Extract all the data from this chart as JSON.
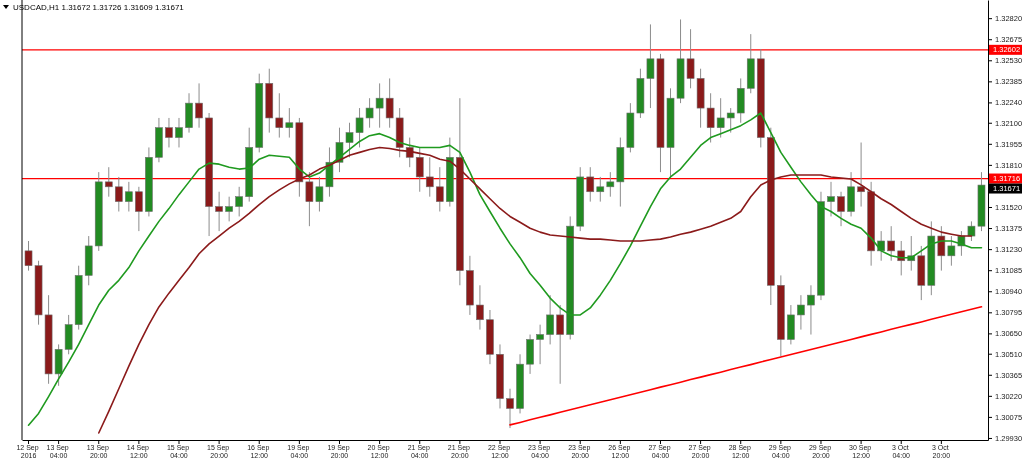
{
  "chart_data": {
    "type": "candlestick",
    "title": "USDCAD,H1  1.31672 1.31726 1.31609 1.31671",
    "categories": [
      "12 Sep 2016",
      null,
      null,
      "13 Sep 04:00",
      null,
      null,
      null,
      "13 Sep 20:00",
      null,
      null,
      null,
      "14 Sep 12:00",
      null,
      null,
      null,
      "15 Sep 04:00",
      null,
      null,
      null,
      "15 Sep 20:00",
      null,
      null,
      null,
      "16 Sep 12:00",
      null,
      null,
      null,
      "19 Sep 04:00",
      null,
      null,
      null,
      "19 Sep 20:00",
      null,
      null,
      null,
      "20 Sep 12:00",
      null,
      null,
      null,
      "21 Sep 04:00",
      null,
      null,
      null,
      "21 Sep 20:00",
      null,
      null,
      null,
      "22 Sep 12:00",
      null,
      null,
      null,
      "23 Sep 04:00",
      null,
      null,
      null,
      "23 Sep 20:00",
      null,
      null,
      null,
      "26 Sep 12:00",
      null,
      null,
      null,
      "27 Sep 04:00",
      null,
      null,
      null,
      "27 Sep 20:00",
      null,
      null,
      null,
      "28 Sep 12:00",
      null,
      null,
      null,
      "29 Sep 04:00",
      null,
      null,
      null,
      "29 Sep 20:00",
      null,
      null,
      null,
      "30 Sep 12:00",
      null,
      null,
      null,
      "3 Oct 04:00",
      null,
      null,
      null,
      "3 Oct 20:00",
      null,
      null,
      null,
      null
    ],
    "ohlc": [
      [
        1.31218,
        1.31286,
        1.31082,
        1.31116
      ],
      [
        1.31116,
        1.3115,
        1.3071,
        1.30777
      ],
      [
        1.30777,
        1.30913,
        1.30303,
        1.30371
      ],
      [
        1.30371,
        1.30574,
        1.30289,
        1.3054
      ],
      [
        1.3054,
        1.30777,
        1.30506,
        1.3071
      ],
      [
        1.3071,
        1.31116,
        1.30676,
        1.31049
      ],
      [
        1.31049,
        1.3132,
        1.30981,
        1.31252
      ],
      [
        1.31252,
        1.3176,
        1.31218,
        1.31693
      ],
      [
        1.31693,
        1.31794,
        1.31591,
        1.31659
      ],
      [
        1.31659,
        1.31727,
        1.31489,
        1.31557
      ],
      [
        1.31557,
        1.31693,
        1.31489,
        1.31625
      ],
      [
        1.31625,
        1.31659,
        1.31354,
        1.31489
      ],
      [
        1.31489,
        1.3193,
        1.31455,
        1.31862
      ],
      [
        1.31862,
        1.32133,
        1.31828,
        1.32066
      ],
      [
        1.32066,
        1.32133,
        1.3193,
        1.31998
      ],
      [
        1.31998,
        1.32133,
        1.3193,
        1.32066
      ],
      [
        1.32066,
        1.32303,
        1.32032,
        1.32235
      ],
      [
        1.32235,
        1.32371,
        1.32066,
        1.32133
      ],
      [
        1.32133,
        1.32167,
        1.3132,
        1.31523
      ],
      [
        1.31523,
        1.31625,
        1.31354,
        1.31489
      ],
      [
        1.31489,
        1.31591,
        1.31421,
        1.31523
      ],
      [
        1.31523,
        1.31659,
        1.31455,
        1.31591
      ],
      [
        1.31591,
        1.32066,
        1.31557,
        1.3193
      ],
      [
        1.3193,
        1.32438,
        1.31896,
        1.32371
      ],
      [
        1.32371,
        1.32472,
        1.32032,
        1.32133
      ],
      [
        1.32133,
        1.32303,
        1.31998,
        1.32066
      ],
      [
        1.32066,
        1.32201,
        1.31998,
        1.321
      ],
      [
        1.321,
        1.32133,
        1.31591,
        1.31693
      ],
      [
        1.31693,
        1.3176,
        1.31388,
        1.31557
      ],
      [
        1.31557,
        1.31727,
        1.31489,
        1.31659
      ],
      [
        1.31659,
        1.3193,
        1.31591,
        1.31828
      ],
      [
        1.31828,
        1.32066,
        1.3176,
        1.31964
      ],
      [
        1.31964,
        1.321,
        1.31862,
        1.32032
      ],
      [
        1.32032,
        1.32201,
        1.3193,
        1.32133
      ],
      [
        1.32133,
        1.32269,
        1.32066,
        1.32201
      ],
      [
        1.32201,
        1.32371,
        1.32066,
        1.32269
      ],
      [
        1.32269,
        1.32405,
        1.32066,
        1.32133
      ],
      [
        1.32133,
        1.32201,
        1.31862,
        1.3193
      ],
      [
        1.3193,
        1.31998,
        1.31794,
        1.31862
      ],
      [
        1.31862,
        1.3193,
        1.31625,
        1.31727
      ],
      [
        1.31727,
        1.31862,
        1.31591,
        1.31659
      ],
      [
        1.31659,
        1.31794,
        1.31489,
        1.31557
      ],
      [
        1.31557,
        1.31998,
        1.31523,
        1.31862
      ],
      [
        1.31862,
        1.32269,
        1.30981,
        1.31082
      ],
      [
        1.31082,
        1.31184,
        1.30777,
        1.30845
      ],
      [
        1.30845,
        1.30981,
        1.30676,
        1.30744
      ],
      [
        1.30744,
        1.30811,
        1.30438,
        1.30506
      ],
      [
        1.30506,
        1.30574,
        1.30133,
        1.30201
      ],
      [
        1.30201,
        1.30269,
        1.29998,
        1.30133
      ],
      [
        1.30133,
        1.30506,
        1.30099,
        1.30438
      ],
      [
        1.30438,
        1.30642,
        1.30371,
        1.30608
      ],
      [
        1.30608,
        1.3071,
        1.30438,
        1.30642
      ],
      [
        1.30642,
        1.30913,
        1.30574,
        1.30777
      ],
      [
        1.30777,
        1.30845,
        1.30303,
        1.30642
      ],
      [
        1.30642,
        1.31455,
        1.30608,
        1.31388
      ],
      [
        1.31388,
        1.31794,
        1.31354,
        1.31727
      ],
      [
        1.31727,
        1.31794,
        1.31557,
        1.31625
      ],
      [
        1.31625,
        1.31727,
        1.31557,
        1.31659
      ],
      [
        1.31659,
        1.3176,
        1.31591,
        1.31693
      ],
      [
        1.31693,
        1.31998,
        1.31523,
        1.3193
      ],
      [
        1.3193,
        1.32235,
        1.31896,
        1.32167
      ],
      [
        1.32167,
        1.32472,
        1.32133,
        1.32405
      ],
      [
        1.32405,
        1.32777,
        1.32201,
        1.3254
      ],
      [
        1.3254,
        1.32574,
        1.3176,
        1.3193
      ],
      [
        1.3193,
        1.32337,
        1.31727,
        1.32269
      ],
      [
        1.32269,
        1.32811,
        1.32235,
        1.3254
      ],
      [
        1.3254,
        1.32744,
        1.32337,
        1.32405
      ],
      [
        1.32405,
        1.32472,
        1.32066,
        1.32201
      ],
      [
        1.32201,
        1.32303,
        1.31964,
        1.32066
      ],
      [
        1.32066,
        1.32269,
        1.31998,
        1.32133
      ],
      [
        1.32133,
        1.32201,
        1.32032,
        1.32167
      ],
      [
        1.32167,
        1.32405,
        1.321,
        1.32337
      ],
      [
        1.32337,
        1.3271,
        1.32303,
        1.3254
      ],
      [
        1.3254,
        1.32608,
        1.3193,
        1.31998
      ],
      [
        1.31998,
        1.32066,
        1.30845,
        1.30981
      ],
      [
        1.30981,
        1.31049,
        1.30493,
        1.30608
      ],
      [
        1.30608,
        1.30845,
        1.30574,
        1.30777
      ],
      [
        1.30777,
        1.30913,
        1.30676,
        1.30845
      ],
      [
        1.30845,
        1.30981,
        1.30642,
        1.30913
      ],
      [
        1.30913,
        1.31625,
        1.30879,
        1.31557
      ],
      [
        1.31557,
        1.31693,
        1.31455,
        1.31591
      ],
      [
        1.31591,
        1.31625,
        1.31388,
        1.31489
      ],
      [
        1.31489,
        1.3176,
        1.31455,
        1.31659
      ],
      [
        1.31659,
        1.31964,
        1.31523,
        1.31625
      ],
      [
        1.31625,
        1.31693,
        1.31116,
        1.31218
      ],
      [
        1.31218,
        1.31354,
        1.3115,
        1.31286
      ],
      [
        1.31286,
        1.31388,
        1.3115,
        1.31218
      ],
      [
        1.31218,
        1.31286,
        1.31049,
        1.3115
      ],
      [
        1.3115,
        1.3132,
        1.31082,
        1.31184
      ],
      [
        1.31184,
        1.31252,
        1.30879,
        1.30981
      ],
      [
        1.30981,
        1.31421,
        1.30913,
        1.3132
      ],
      [
        1.3132,
        1.31388,
        1.31082,
        1.31184
      ],
      [
        1.31184,
        1.3132,
        1.31116,
        1.31252
      ],
      [
        1.31252,
        1.31354,
        1.31184,
        1.3132
      ],
      [
        1.3132,
        1.31421,
        1.31286,
        1.31388
      ],
      [
        1.31388,
        1.3176,
        1.31354,
        1.31671
      ]
    ],
    "colors": [
      "#8b1a1a",
      "#8b1a1a",
      "#8b1a1a",
      "#228b22",
      "#228b22",
      "#228b22",
      "#228b22",
      "#228b22",
      "#8b1a1a",
      "#8b1a1a",
      "#228b22",
      "#8b1a1a",
      "#228b22",
      "#228b22",
      "#8b1a1a",
      "#228b22",
      "#228b22",
      "#8b1a1a",
      "#8b1a1a",
      "#8b1a1a",
      "#228b22",
      "#228b22",
      "#228b22",
      "#228b22",
      "#8b1a1a",
      "#8b1a1a",
      "#228b22",
      "#8b1a1a",
      "#8b1a1a",
      "#228b22",
      "#228b22",
      "#228b22",
      "#228b22",
      "#228b22",
      "#228b22",
      "#228b22",
      "#8b1a1a",
      "#8b1a1a",
      "#8b1a1a",
      "#8b1a1a",
      "#8b1a1a",
      "#8b1a1a",
      "#228b22",
      "#8b1a1a",
      "#8b1a1a",
      "#8b1a1a",
      "#8b1a1a",
      "#8b1a1a",
      "#8b1a1a",
      "#228b22",
      "#228b22",
      "#228b22",
      "#228b22",
      "#8b1a1a",
      "#228b22",
      "#228b22",
      "#8b1a1a",
      "#228b22",
      "#228b22",
      "#228b22",
      "#228b22",
      "#228b22",
      "#228b22",
      "#8b1a1a",
      "#228b22",
      "#228b22",
      "#8b1a1a",
      "#8b1a1a",
      "#8b1a1a",
      "#228b22",
      "#228b22",
      "#228b22",
      "#228b22",
      "#8b1a1a",
      "#8b1a1a",
      "#8b1a1a",
      "#228b22",
      "#228b22",
      "#228b22",
      "#228b22",
      "#228b22",
      "#8b1a1a",
      "#228b22",
      "#8b1a1a",
      "#8b1a1a",
      "#228b22",
      "#8b1a1a",
      "#8b1a1a",
      "#228b22",
      "#8b1a1a",
      "#228b22",
      "#8b1a1a",
      "#228b22",
      "#228b22",
      "#228b22",
      "#228b22"
    ],
    "series": [
      {
        "type": "line",
        "color": "#1f9a1f",
        "values": [
          1.30018,
          1.30099,
          1.30215,
          1.30337,
          1.30452,
          1.30574,
          1.3071,
          1.30845,
          1.30947,
          1.31015,
          1.31103,
          1.31218,
          1.3132,
          1.31421,
          1.31509,
          1.31605,
          1.31693,
          1.31781,
          1.31822,
          1.31815,
          1.31794,
          1.31781,
          1.31788,
          1.31849,
          1.31876,
          1.31869,
          1.31862,
          1.31781,
          1.31727,
          1.31754,
          1.31808,
          1.31862,
          1.31916,
          1.31971,
          1.32011,
          1.32025,
          1.31998,
          1.31964,
          1.31944,
          1.3193,
          1.3193,
          1.3193,
          1.31944,
          1.31896,
          1.3176,
          1.31605,
          1.31489,
          1.31374,
          1.31266,
          1.31171,
          1.31062,
          1.30981,
          1.30893,
          1.30825,
          1.30777,
          1.30777,
          1.30825,
          1.30913,
          1.31015,
          1.3113,
          1.31252,
          1.31388,
          1.31523,
          1.31645,
          1.31727,
          1.31781,
          1.31862,
          1.31944,
          1.31998,
          1.32025,
          1.32052,
          1.3208,
          1.3212,
          1.32167,
          1.32032,
          1.31896,
          1.31794,
          1.31693,
          1.31605,
          1.31523,
          1.31489,
          1.31442,
          1.31401,
          1.31374,
          1.31306,
          1.31218,
          1.31184,
          1.31171,
          1.31171,
          1.31218,
          1.31266,
          1.31286,
          1.31286,
          1.31266,
          1.31239,
          1.31239
        ]
      },
      {
        "type": "line",
        "color": "#8b1a1a",
        "values": [
          null,
          null,
          null,
          null,
          null,
          null,
          null,
          1.29964,
          1.30113,
          1.30269,
          1.30425,
          1.30574,
          1.3071,
          1.30832,
          1.30927,
          1.31015,
          1.31103,
          1.31198,
          1.31266,
          1.3132,
          1.31374,
          1.31421,
          1.31476,
          1.31537,
          1.31591,
          1.31638,
          1.31679,
          1.31713,
          1.3174,
          1.31781,
          1.31808,
          1.31842,
          1.31876,
          1.31896,
          1.31916,
          1.3193,
          1.31923,
          1.3191,
          1.31903,
          1.31889,
          1.31876,
          1.31849,
          1.31835,
          1.31781,
          1.31713,
          1.31645,
          1.31577,
          1.3151,
          1.31455,
          1.31415,
          1.31374,
          1.31347,
          1.31327,
          1.3132,
          1.31313,
          1.31306,
          1.31299,
          1.31299,
          1.31293,
          1.31286,
          1.31286,
          1.31286,
          1.31293,
          1.31299,
          1.31313,
          1.31333,
          1.31347,
          1.31367,
          1.31388,
          1.31415,
          1.31442,
          1.31489,
          1.31591,
          1.31672,
          1.31706,
          1.31727,
          1.3174,
          1.3174,
          1.3174,
          1.3174,
          1.31727,
          1.3172,
          1.31713,
          1.31672,
          1.31625,
          1.31577,
          1.31537,
          1.31489,
          1.31442,
          1.31401,
          1.31374,
          1.31347,
          1.31333,
          1.3132,
          1.3132,
          null
        ]
      },
      {
        "type": "line",
        "color": "#ff0000",
        "values": [
          null,
          null,
          null,
          null,
          null,
          null,
          null,
          null,
          null,
          null,
          null,
          null,
          null,
          null,
          null,
          null,
          null,
          null,
          null,
          null,
          null,
          null,
          null,
          null,
          null,
          null,
          null,
          null,
          null,
          null,
          null,
          null,
          null,
          null,
          null,
          null,
          null,
          null,
          null,
          null,
          null,
          null,
          null,
          null,
          null,
          null,
          null,
          null,
          1.3002,
          1.30037,
          1.30055,
          1.30072,
          1.30089,
          1.30107,
          1.30124,
          1.30141,
          1.30159,
          1.30176,
          1.30193,
          1.3021,
          1.30228,
          1.30245,
          1.30262,
          1.3028,
          1.30297,
          1.30314,
          1.30332,
          1.30349,
          1.30366,
          1.30383,
          1.30401,
          1.30418,
          1.30435,
          1.30453,
          1.3047,
          1.30487,
          1.30505,
          1.30522,
          1.30539,
          1.30556,
          1.30574,
          1.30591,
          1.30608,
          1.30626,
          1.30643,
          1.3066,
          1.30678,
          1.30695,
          1.30712,
          1.30729,
          1.30747,
          1.30764,
          1.30781,
          1.30799,
          1.30816,
          1.30833
        ]
      }
    ],
    "ylim": [
      1.29916,
      1.32945
    ],
    "yticks": [
      {
        "value": 1.2993,
        "label": "1.29930"
      },
      1.30075,
      {
        "value": 1.3022,
        "label": "1.30220"
      },
      1.30365,
      {
        "value": 1.3051,
        "label": "1.30510"
      },
      {
        "value": 1.3065,
        "label": "1.30650"
      },
      1.30795,
      {
        "value": 1.3094,
        "label": "1.30940"
      },
      1.31085,
      {
        "value": 1.3123,
        "label": "1.31230"
      },
      1.31375,
      {
        "value": 1.3152,
        "label": "1.31520"
      },
      {
        "value": 1.3181,
        "label": "1.31810"
      },
      1.31955,
      {
        "value": 1.321,
        "label": "1.32100"
      },
      {
        "value": 1.3224,
        "label": "1.32240"
      },
      1.32385,
      {
        "value": 1.3253,
        "label": "1.32530"
      },
      1.32675,
      {
        "value": 1.3282,
        "label": "1.32820"
      }
    ],
    "ref_lines": [
      {
        "axis": "y",
        "value": 1.32602,
        "label": "1.32602",
        "color": "#ff0000"
      },
      {
        "axis": "y",
        "value": 1.31716,
        "label": "1.31716",
        "color": "#ff0000"
      }
    ],
    "annotations": [
      "1.31671"
    ]
  }
}
